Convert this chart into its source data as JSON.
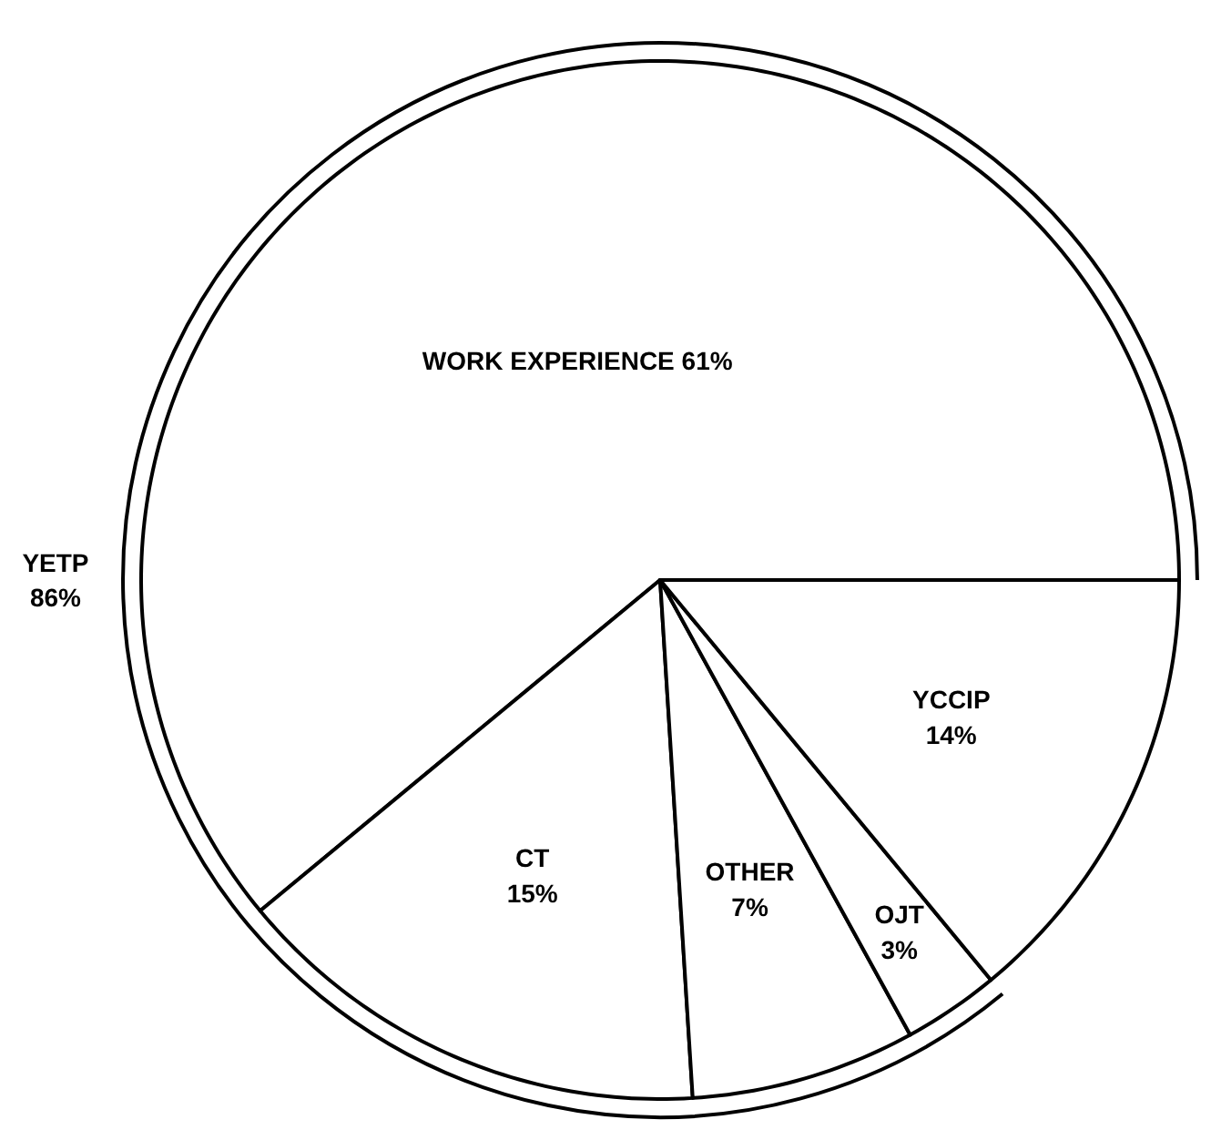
{
  "chart_data": {
    "type": "pie",
    "categories": [
      "WORK EXPERIENCE",
      "CT",
      "OTHER",
      "OJT",
      "YCCIP"
    ],
    "values": [
      61,
      15,
      7,
      3,
      14
    ],
    "value_labels": [
      "61%",
      "15%",
      "7%",
      "3%",
      "14%"
    ],
    "colors": [
      "#ffffff",
      "#ffffff",
      "#ffffff",
      "#ffffff",
      "#ffffff"
    ],
    "annotations": [
      "YETP\n86%"
    ]
  }
}
